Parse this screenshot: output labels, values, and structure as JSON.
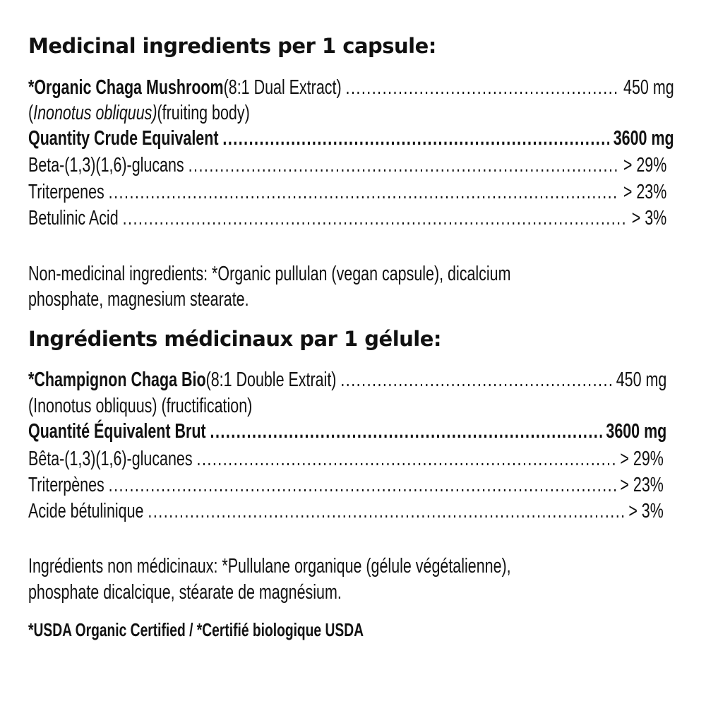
{
  "en": {
    "heading": "Medicinal ingredients per 1 capsule:",
    "rows": [
      {
        "name": "*Organic Chaga Mushroom",
        "detail": " (8:1 Dual Extract)",
        "value": "450 mg"
      },
      {
        "latin": "Inonotus obliquus)",
        "open": "(",
        "part": " (fruiting body)"
      },
      {
        "name": "Quantity Crude Equivalent",
        "value": "3600 mg"
      },
      {
        "name": "Beta-(1,3)(1,6)-glucans",
        "value": "> 29%"
      },
      {
        "name": "Triterpenes",
        "value": "> 23%"
      },
      {
        "name": "Betulinic Acid",
        "value": "> 3%"
      }
    ],
    "non_medicinal": [
      "Non-medicinal ingredients: *Organic pullulan (vegan capsule), dicalcium",
      "phosphate, magnesium stearate."
    ]
  },
  "fr": {
    "heading": "Ingrédients médicinaux par 1 gélule:",
    "rows": [
      {
        "name": "*Champignon Chaga Bio",
        "detail": " (8:1 Double Extrait)",
        "value": "450 mg"
      },
      {
        "text": "(Inonotus obliquus) (fructification)"
      },
      {
        "name": "Quantité Équivalent Brut",
        "value": "3600 mg"
      },
      {
        "name": "Bêta-(1,3)(1,6)-glucanes",
        "value": "> 29%"
      },
      {
        "name": "Triterpènes",
        "value": "> 23%"
      },
      {
        "name": "Acide bétulinique",
        "value": "> 3%"
      }
    ],
    "non_medicinal": [
      "Ingrédients non médicinaux: *Pullulane organique (gélule végétalienne),",
      "phosphate dicalcique, stéarate de magnésium."
    ]
  },
  "footnote": "*USDA Organic Certified / *Certifié biologique USDA"
}
